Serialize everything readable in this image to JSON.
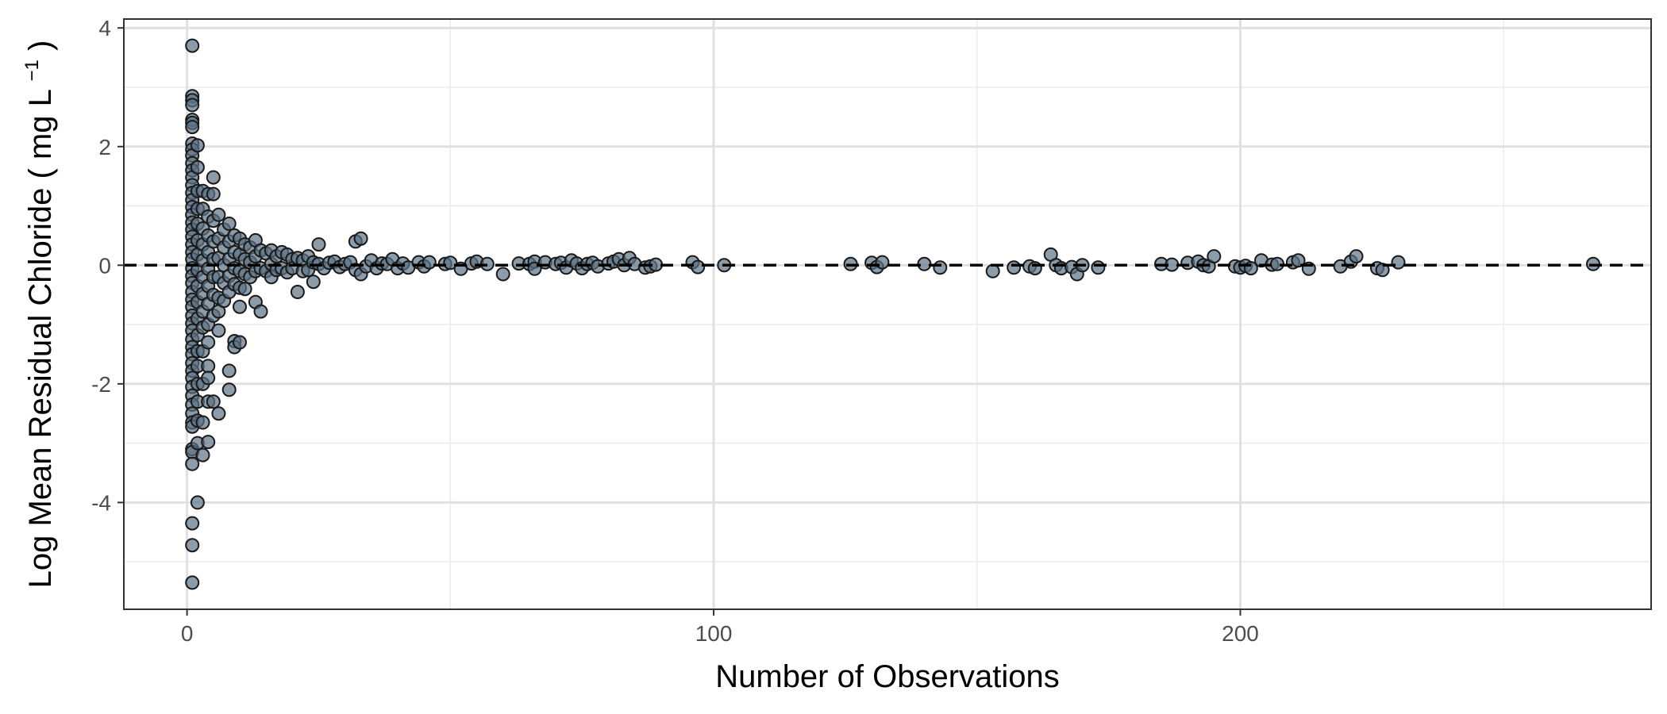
{
  "chart_data": {
    "type": "scatter",
    "title": "",
    "xlabel": "Number of Observations",
    "ylabel": "Log Mean Residual Chloride",
    "ylabel_unit": "mg L",
    "ylabel_unit_exponent": "−1",
    "xlim": [
      -12,
      278
    ],
    "ylim": [
      -5.8,
      4.15
    ],
    "x_ticks": [
      0,
      100,
      200
    ],
    "x_tick_labels": [
      "0",
      "100",
      "200"
    ],
    "y_ticks": [
      -4,
      -2,
      0,
      2,
      4
    ],
    "y_tick_labels": [
      "-4",
      "-2",
      "0",
      "2",
      "4"
    ],
    "x_minor_ticks": [
      50,
      150,
      250
    ],
    "y_minor_ticks": [
      -5,
      -3,
      -1,
      1,
      3
    ],
    "grid": true,
    "reference_line": {
      "y": 0,
      "style": "dashed",
      "color": "#000000"
    },
    "point_color": "#5b7285",
    "point_edge_color": "#1a1a1a",
    "legend": "none",
    "points": [
      [
        1,
        3.7
      ],
      [
        1,
        2.85
      ],
      [
        1,
        2.78
      ],
      [
        1,
        2.7
      ],
      [
        1,
        2.45
      ],
      [
        1,
        2.4
      ],
      [
        1,
        2.33
      ],
      [
        1,
        2.05
      ],
      [
        1,
        1.95
      ],
      [
        1,
        1.85
      ],
      [
        1,
        1.72
      ],
      [
        1,
        1.6
      ],
      [
        1,
        1.48
      ],
      [
        1,
        1.35
      ],
      [
        1,
        1.22
      ],
      [
        1,
        1.1
      ],
      [
        1,
        0.98
      ],
      [
        1,
        0.85
      ],
      [
        1,
        0.72
      ],
      [
        1,
        0.6
      ],
      [
        1,
        0.48
      ],
      [
        1,
        0.35
      ],
      [
        1,
        0.22
      ],
      [
        1,
        0.1
      ],
      [
        1,
        -0.05
      ],
      [
        1,
        -0.18
      ],
      [
        1,
        -0.3
      ],
      [
        1,
        -0.45
      ],
      [
        1,
        -0.58
      ],
      [
        1,
        -0.7
      ],
      [
        1,
        -0.85
      ],
      [
        1,
        -0.98
      ],
      [
        1,
        -1.1
      ],
      [
        1,
        -1.25
      ],
      [
        1,
        -1.38
      ],
      [
        1,
        -1.5
      ],
      [
        1,
        -1.65
      ],
      [
        1,
        -1.78
      ],
      [
        1,
        -1.9
      ],
      [
        1,
        -2.05
      ],
      [
        1,
        -2.2
      ],
      [
        1,
        -2.35
      ],
      [
        1,
        -2.5
      ],
      [
        1,
        -2.65
      ],
      [
        1,
        -2.72
      ],
      [
        1,
        -3.1
      ],
      [
        1,
        -3.15
      ],
      [
        1,
        -3.35
      ],
      [
        1,
        -4.35
      ],
      [
        1,
        -4.72
      ],
      [
        1,
        -5.35
      ],
      [
        2,
        2.02
      ],
      [
        2,
        1.65
      ],
      [
        2,
        1.25
      ],
      [
        2,
        0.95
      ],
      [
        2,
        0.7
      ],
      [
        2,
        0.42
      ],
      [
        2,
        0.18
      ],
      [
        2,
        -0.08
      ],
      [
        2,
        -0.35
      ],
      [
        2,
        -0.62
      ],
      [
        2,
        -0.9
      ],
      [
        2,
        -1.18
      ],
      [
        2,
        -1.45
      ],
      [
        2,
        -1.7
      ],
      [
        2,
        -2.0
      ],
      [
        2,
        -2.3
      ],
      [
        2,
        -2.62
      ],
      [
        2,
        -3.0
      ],
      [
        2,
        -4.0
      ],
      [
        3,
        1.25
      ],
      [
        3,
        0.95
      ],
      [
        3,
        0.62
      ],
      [
        3,
        0.35
      ],
      [
        3,
        0.08
      ],
      [
        3,
        -0.2
      ],
      [
        3,
        -0.48
      ],
      [
        3,
        -0.78
      ],
      [
        3,
        -1.05
      ],
      [
        3,
        -1.45
      ],
      [
        3,
        -2.0
      ],
      [
        3,
        -2.65
      ],
      [
        3,
        -3.2
      ],
      [
        4,
        1.2
      ],
      [
        4,
        0.82
      ],
      [
        4,
        0.5
      ],
      [
        4,
        0.22
      ],
      [
        4,
        -0.06
      ],
      [
        4,
        -0.35
      ],
      [
        4,
        -0.65
      ],
      [
        4,
        -1.0
      ],
      [
        4,
        -1.3
      ],
      [
        4,
        -1.7
      ],
      [
        4,
        -1.9
      ],
      [
        4,
        -2.3
      ],
      [
        4,
        -2.98
      ],
      [
        5,
        1.48
      ],
      [
        5,
        1.2
      ],
      [
        5,
        0.75
      ],
      [
        5,
        0.4
      ],
      [
        5,
        0.1
      ],
      [
        5,
        -0.2
      ],
      [
        5,
        -0.5
      ],
      [
        5,
        -0.85
      ],
      [
        5,
        -2.3
      ],
      [
        6,
        0.85
      ],
      [
        6,
        0.45
      ],
      [
        6,
        0.12
      ],
      [
        6,
        -0.2
      ],
      [
        6,
        -0.55
      ],
      [
        6,
        -0.78
      ],
      [
        6,
        -1.1
      ],
      [
        6,
        -2.5
      ],
      [
        7,
        0.6
      ],
      [
        7,
        0.3
      ],
      [
        7,
        0.0
      ],
      [
        7,
        -0.3
      ],
      [
        7,
        -0.6
      ],
      [
        8,
        0.7
      ],
      [
        8,
        0.4
      ],
      [
        8,
        0.1
      ],
      [
        8,
        -0.18
      ],
      [
        8,
        -0.45
      ],
      [
        8,
        -1.78
      ],
      [
        8,
        -2.1
      ],
      [
        9,
        0.5
      ],
      [
        9,
        0.22
      ],
      [
        9,
        -0.05
      ],
      [
        9,
        -0.32
      ],
      [
        9,
        -1.28
      ],
      [
        9,
        -1.38
      ],
      [
        10,
        0.45
      ],
      [
        10,
        0.18
      ],
      [
        10,
        -0.1
      ],
      [
        10,
        -0.38
      ],
      [
        10,
        -0.7
      ],
      [
        10,
        -1.3
      ],
      [
        11,
        0.35
      ],
      [
        11,
        0.1
      ],
      [
        11,
        -0.15
      ],
      [
        11,
        -0.4
      ],
      [
        12,
        0.3
      ],
      [
        12,
        0.05
      ],
      [
        12,
        -0.2
      ],
      [
        13,
        0.42
      ],
      [
        13,
        0.15
      ],
      [
        13,
        -0.1
      ],
      [
        13,
        -0.62
      ],
      [
        14,
        0.25
      ],
      [
        14,
        -0.05
      ],
      [
        14,
        -0.78
      ],
      [
        15,
        0.2
      ],
      [
        15,
        -0.1
      ],
      [
        16,
        0.25
      ],
      [
        16,
        0.02
      ],
      [
        16,
        -0.2
      ],
      [
        17,
        0.15
      ],
      [
        17,
        -0.08
      ],
      [
        18,
        0.22
      ],
      [
        18,
        -0.05
      ],
      [
        19,
        0.18
      ],
      [
        19,
        -0.12
      ],
      [
        20,
        0.1
      ],
      [
        20,
        -0.05
      ],
      [
        21,
        0.12
      ],
      [
        21,
        -0.45
      ],
      [
        22,
        0.08
      ],
      [
        22,
        -0.1
      ],
      [
        23,
        0.15
      ],
      [
        23,
        -0.08
      ],
      [
        24,
        0.05
      ],
      [
        24,
        -0.28
      ],
      [
        25,
        0.35
      ],
      [
        25,
        0.02
      ],
      [
        26,
        -0.05
      ],
      [
        27,
        0.04
      ],
      [
        28,
        0.06
      ],
      [
        29,
        -0.03
      ],
      [
        30,
        0.02
      ],
      [
        31,
        0.05
      ],
      [
        32,
        0.4
      ],
      [
        32,
        -0.08
      ],
      [
        33,
        0.45
      ],
      [
        33,
        -0.15
      ],
      [
        34,
        -0.02
      ],
      [
        35,
        0.08
      ],
      [
        36,
        -0.05
      ],
      [
        37,
        0.03
      ],
      [
        38,
        0.02
      ],
      [
        39,
        0.1
      ],
      [
        40,
        -0.05
      ],
      [
        41,
        0.03
      ],
      [
        42,
        -0.04
      ],
      [
        44,
        0.05
      ],
      [
        45,
        -0.02
      ],
      [
        46,
        0.05
      ],
      [
        49,
        0.02
      ],
      [
        50,
        0.04
      ],
      [
        52,
        -0.06
      ],
      [
        54,
        0.03
      ],
      [
        55,
        0.06
      ],
      [
        57,
        0.02
      ],
      [
        60,
        -0.15
      ],
      [
        63,
        0.03
      ],
      [
        65,
        0.02
      ],
      [
        66,
        0.06
      ],
      [
        66,
        -0.06
      ],
      [
        68,
        0.05
      ],
      [
        70,
        0.02
      ],
      [
        71,
        0.04
      ],
      [
        72,
        -0.04
      ],
      [
        73,
        0.08
      ],
      [
        74,
        0.03
      ],
      [
        75,
        -0.05
      ],
      [
        76,
        0.02
      ],
      [
        77,
        0.04
      ],
      [
        78,
        -0.02
      ],
      [
        80,
        0.03
      ],
      [
        81,
        0.06
      ],
      [
        82,
        0.1
      ],
      [
        83,
        0.0
      ],
      [
        84,
        0.12
      ],
      [
        85,
        0.02
      ],
      [
        87,
        -0.04
      ],
      [
        88,
        -0.02
      ],
      [
        89,
        0.01
      ],
      [
        96,
        0.05
      ],
      [
        97,
        -0.03
      ],
      [
        102,
        0.0
      ],
      [
        126,
        0.02
      ],
      [
        130,
        0.04
      ],
      [
        131,
        -0.03
      ],
      [
        132,
        0.05
      ],
      [
        140,
        0.02
      ],
      [
        143,
        -0.04
      ],
      [
        153,
        -0.1
      ],
      [
        157,
        -0.04
      ],
      [
        160,
        -0.02
      ],
      [
        161,
        -0.05
      ],
      [
        164,
        0.18
      ],
      [
        165,
        0.0
      ],
      [
        166,
        -0.05
      ],
      [
        168,
        -0.03
      ],
      [
        169,
        -0.15
      ],
      [
        170,
        0.0
      ],
      [
        173,
        -0.04
      ],
      [
        185,
        0.02
      ],
      [
        187,
        0.01
      ],
      [
        190,
        0.04
      ],
      [
        192,
        0.06
      ],
      [
        193,
        0.0
      ],
      [
        194,
        -0.02
      ],
      [
        195,
        0.15
      ],
      [
        199,
        -0.02
      ],
      [
        200,
        -0.04
      ],
      [
        201,
        -0.01
      ],
      [
        202,
        -0.05
      ],
      [
        204,
        0.08
      ],
      [
        206,
        0.01
      ],
      [
        207,
        0.02
      ],
      [
        210,
        0.05
      ],
      [
        211,
        0.08
      ],
      [
        213,
        -0.06
      ],
      [
        219,
        -0.02
      ],
      [
        221,
        0.06
      ],
      [
        222,
        0.15
      ],
      [
        226,
        -0.05
      ],
      [
        227,
        -0.08
      ],
      [
        230,
        0.05
      ],
      [
        267,
        0.02
      ]
    ]
  }
}
